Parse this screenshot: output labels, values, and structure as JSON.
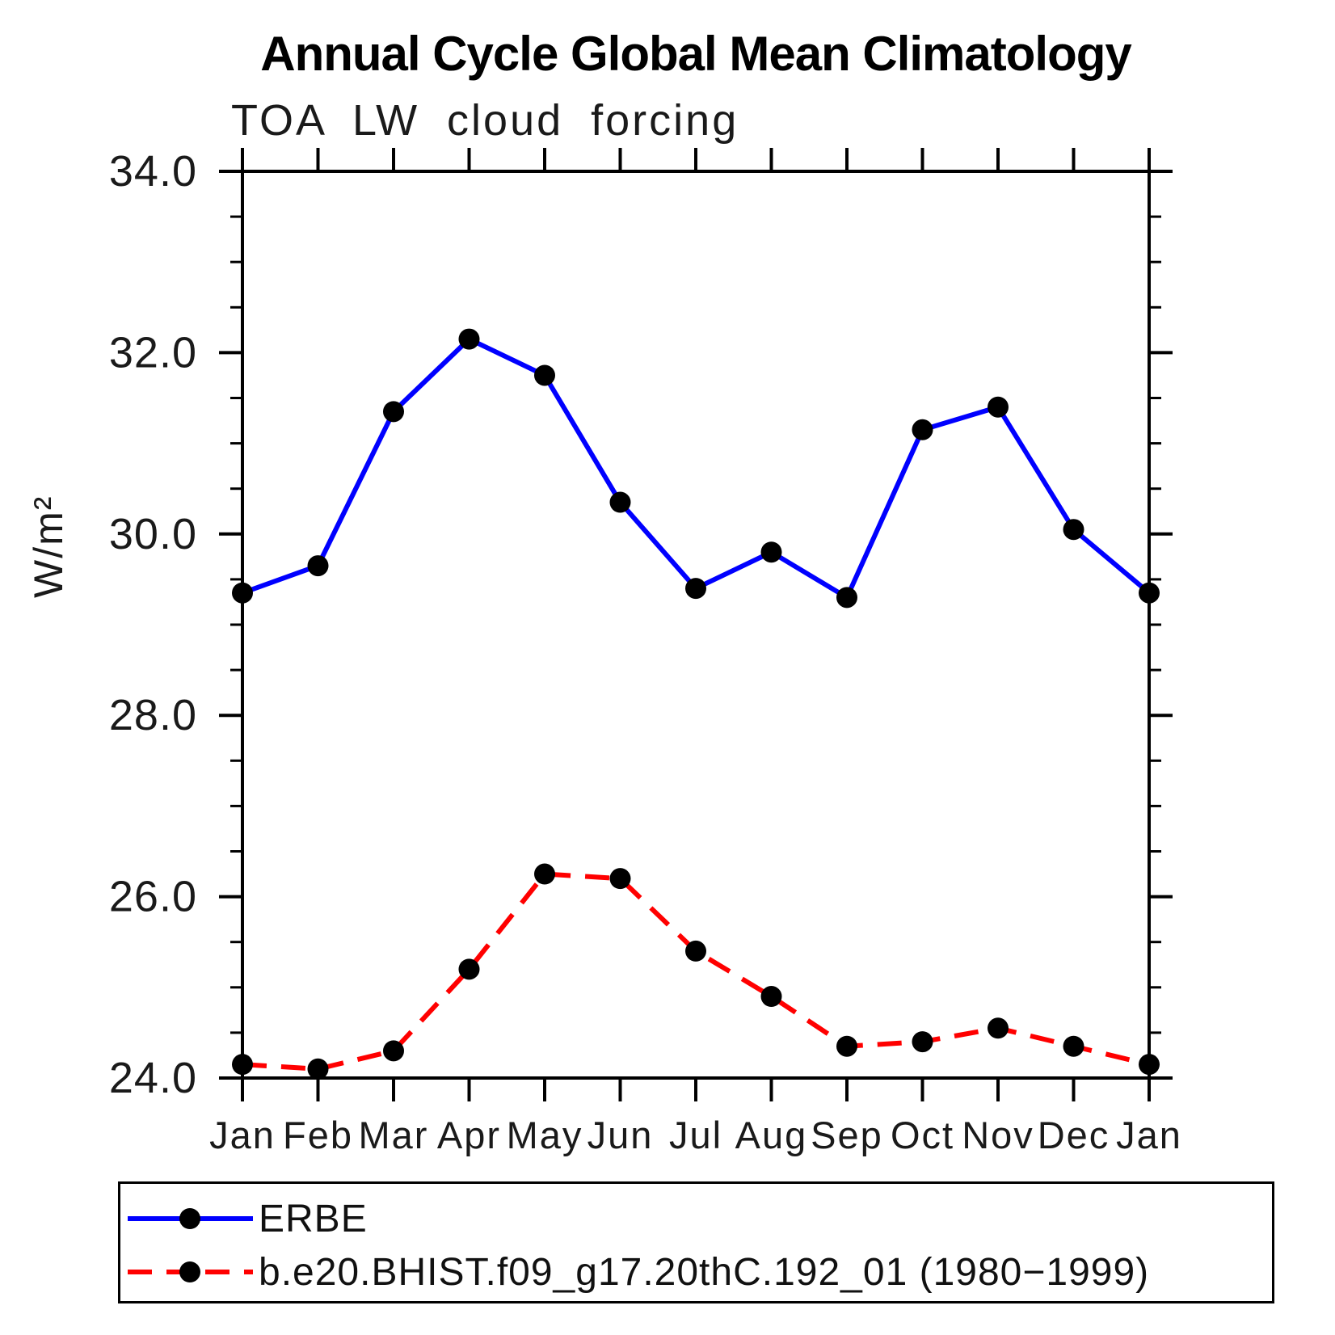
{
  "header": {
    "title": "Annual Cycle Global Mean Climatology",
    "subtitle": "TOA LW cloud forcing"
  },
  "chart_data": {
    "type": "line",
    "title": "Annual Cycle Global Mean Climatology",
    "subtitle": "TOA LW cloud forcing",
    "xlabel": "",
    "ylabel": "W/m²",
    "categories": [
      "Jan",
      "Feb",
      "Mar",
      "Apr",
      "May",
      "Jun",
      "Jul",
      "Aug",
      "Sep",
      "Oct",
      "Nov",
      "Dec",
      "Jan"
    ],
    "ylim": [
      24.0,
      34.0
    ],
    "ytick_step": 2.0,
    "yminor_step": 0.5,
    "ytick_labels": [
      "24.0",
      "26.0",
      "28.0",
      "30.0",
      "32.0",
      "34.0"
    ],
    "grid": false,
    "legend_position": "bottom",
    "axis_color": "#000000",
    "marker_color": "#000000",
    "series": [
      {
        "name": "ERBE",
        "color": "#0000ff",
        "line_style": "solid",
        "marker": "circle",
        "values": [
          29.35,
          29.65,
          31.35,
          32.15,
          31.75,
          30.35,
          29.4,
          29.8,
          29.3,
          31.15,
          31.4,
          30.05,
          29.35
        ]
      },
      {
        "name": "b.e20.BHIST.f09_g17.20thC.192_01 (1980−1999)",
        "color": "#ff0000",
        "line_style": "dashed",
        "marker": "circle",
        "values": [
          24.15,
          24.1,
          24.3,
          25.2,
          26.25,
          26.2,
          25.4,
          24.9,
          24.35,
          24.4,
          24.55,
          24.35,
          24.15
        ]
      }
    ]
  }
}
